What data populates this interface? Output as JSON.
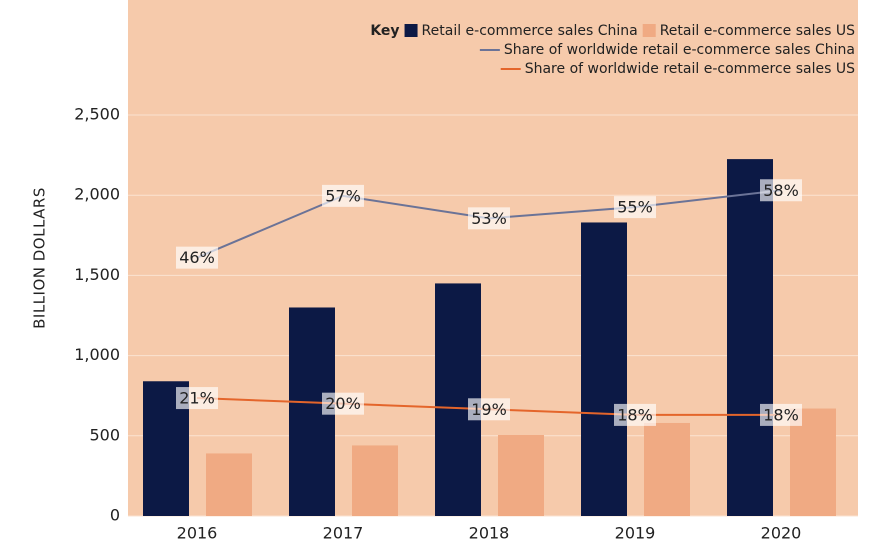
{
  "chart_data": {
    "type": "bar",
    "y_axis_label": "BILLION DOLLARS",
    "legend_title": "Key",
    "categories": [
      "2016",
      "2017",
      "2018",
      "2019",
      "2020"
    ],
    "ylim": [
      0,
      2500
    ],
    "yticks": [
      0,
      500,
      {
        "value": 1000,
        "label": "1,000"
      },
      {
        "value": 1500,
        "label": "1,500"
      },
      {
        "value": 2000,
        "label": "2,000"
      },
      {
        "value": 2500,
        "label": "2,500"
      }
    ],
    "y2lim": [
      0,
      71.4
    ],
    "grid": true,
    "background": "#f6caab",
    "series": [
      {
        "name": "Retail e-commerce sales China",
        "type": "bar",
        "color": "#0c1945",
        "values": [
          840,
          1300,
          1450,
          1830,
          2225
        ]
      },
      {
        "name": "Retail e-commerce sales US",
        "type": "bar",
        "color": "#f0aa83",
        "values": [
          390,
          440,
          505,
          580,
          670
        ]
      },
      {
        "name": "Share of worldwide retail e-commerce sales China",
        "type": "line",
        "axis": "y2",
        "color": "#6b7397",
        "values": [
          46,
          57,
          53,
          55,
          58
        ],
        "value_labels": [
          "46%",
          "57%",
          "53%",
          "55%",
          "58%"
        ]
      },
      {
        "name": "Share of worldwide retail e-commerce sales US",
        "type": "line",
        "axis": "y2",
        "color": "#e4652b",
        "values": [
          21,
          20,
          19,
          18,
          18
        ],
        "value_labels": [
          "21%",
          "20%",
          "19%",
          "18%",
          "18%"
        ]
      }
    ]
  }
}
